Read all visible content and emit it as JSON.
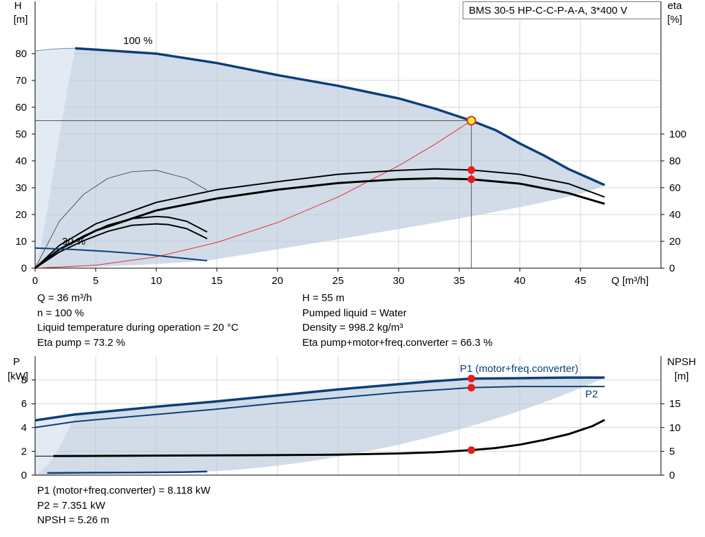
{
  "title": "BMS 30-5 HP-C-C-P-A-A, 3*400 V",
  "chart_data": [
    {
      "id": "head",
      "type": "line",
      "xlabel": "Q [m³/h]",
      "ylabel_left": [
        "H",
        "[m]"
      ],
      "ylabel_right": [
        "eta",
        "[%]"
      ],
      "xlim": [
        0,
        50
      ],
      "ylim": [
        0,
        90
      ],
      "y2lim": [
        0,
        200
      ],
      "xticks": [
        0,
        5,
        10,
        15,
        20,
        25,
        30,
        35,
        40,
        45
      ],
      "yticks": [
        0,
        10,
        20,
        30,
        40,
        50,
        60,
        70,
        80
      ],
      "y2ticks": [
        0,
        20,
        40,
        60,
        80,
        100
      ],
      "annotations": [
        "100 %",
        "30 %"
      ],
      "duty_point": {
        "q": 36,
        "h": 55
      },
      "series": [
        {
          "key": "h100",
          "color": "#0b3e7a",
          "x": [
            3.3,
            10,
            15,
            20,
            25,
            30,
            33,
            36,
            38,
            40,
            42,
            44,
            45.5,
            47
          ],
          "y": [
            82,
            80,
            76.5,
            72,
            68,
            63.3,
            59.5,
            55,
            51.5,
            46.5,
            42,
            37,
            34,
            31
          ]
        },
        {
          "key": "h_low",
          "color": "#0b3e7a",
          "x": [
            0,
            3,
            6,
            9,
            12,
            14.2
          ],
          "y": [
            7.5,
            7,
            6.2,
            5.2,
            3.8,
            2.8
          ]
        },
        {
          "key": "sys",
          "color": "#e82a2a",
          "x": [
            0,
            5,
            10,
            15,
            20,
            25,
            30,
            33,
            36
          ],
          "y": [
            0,
            1.1,
            4.2,
            9.6,
            17,
            26.5,
            38.2,
            46.2,
            55
          ]
        },
        {
          "key": "eta_pump",
          "color": "#000000",
          "x": [
            0,
            2,
            5,
            10,
            15,
            20,
            25,
            30,
            33,
            36,
            40,
            44,
            47
          ],
          "y": [
            0,
            17,
            33,
            49,
            58.5,
            64.5,
            70,
            73,
            74,
            73.2,
            70,
            63,
            53
          ]
        },
        {
          "key": "eta_total",
          "color": "#000000",
          "x": [
            0,
            2,
            5,
            10,
            15,
            20,
            25,
            30,
            33,
            36,
            40,
            44,
            47
          ],
          "y": [
            0,
            14,
            28,
            43,
            52,
            58.5,
            63.5,
            66.3,
            67,
            66.3,
            63,
            56,
            48
          ]
        },
        {
          "key": "eta_low_a",
          "color": "#000000",
          "x": [
            0,
            2,
            4,
            6,
            8,
            10,
            11,
            12.5,
            14.2
          ],
          "y": [
            0,
            14,
            24,
            32,
            37,
            38.5,
            38,
            35,
            27
          ]
        },
        {
          "key": "eta_low_b",
          "color": "#000000",
          "x": [
            0,
            2,
            4,
            6,
            8,
            10,
            11,
            12.5,
            14.2
          ],
          "y": [
            0,
            12,
            20.5,
            27.5,
            32,
            33,
            32.5,
            29.5,
            22
          ]
        },
        {
          "key": "npsh_thin",
          "color": "#222222",
          "x": [
            0,
            2,
            4,
            6,
            8,
            10,
            12.5,
            14.2
          ],
          "y": [
            0,
            35,
            55,
            67,
            72,
            73,
            67,
            58
          ]
        }
      ],
      "markers": [
        {
          "x": 36,
          "y": 55,
          "axis": "left",
          "kind": "duty"
        },
        {
          "x": 36,
          "y": 73.2,
          "axis": "right",
          "kind": "point"
        },
        {
          "x": 36,
          "y": 66.3,
          "axis": "right",
          "kind": "point"
        }
      ]
    },
    {
      "id": "power",
      "type": "line",
      "xlim": [
        0,
        50
      ],
      "ylim": [
        0,
        10
      ],
      "y2lim": [
        0,
        25
      ],
      "ylabel_left": [
        "P",
        "[kW]"
      ],
      "ylabel_right": [
        "NPSH",
        "[m]"
      ],
      "yticks": [
        0,
        2,
        4,
        6,
        8
      ],
      "y2ticks": [
        0,
        5,
        10,
        15
      ],
      "series": [
        {
          "key": "p1",
          "name": "P1 (motor+freq.converter)",
          "color": "#0b3e7a",
          "x": [
            0,
            3.3,
            10,
            15,
            20,
            25,
            30,
            33,
            36,
            40,
            44,
            47
          ],
          "y": [
            4.6,
            5.1,
            5.75,
            6.2,
            6.7,
            7.2,
            7.65,
            7.9,
            8.118,
            8.15,
            8.2,
            8.2
          ]
        },
        {
          "key": "p2",
          "name": "P2",
          "color": "#0b3e7a",
          "x": [
            0,
            3.3,
            10,
            15,
            20,
            25,
            30,
            33,
            36,
            40,
            44,
            47
          ],
          "y": [
            4.0,
            4.5,
            5.1,
            5.55,
            6.05,
            6.5,
            6.95,
            7.15,
            7.351,
            7.45,
            7.45,
            7.45
          ]
        },
        {
          "key": "p_low",
          "color": "#0b3e7a",
          "x": [
            1,
            4,
            8,
            12,
            14.2
          ],
          "y": [
            0.18,
            0.2,
            0.22,
            0.25,
            0.3
          ]
        },
        {
          "key": "npsh",
          "color": "#000000",
          "x": [
            1.5,
            10,
            20,
            25,
            30,
            33,
            36,
            38,
            40,
            42,
            44,
            46,
            47
          ],
          "y": [
            4.0,
            4.1,
            4.2,
            4.3,
            4.55,
            4.8,
            5.26,
            5.7,
            6.4,
            7.4,
            8.6,
            10.3,
            11.6
          ]
        }
      ],
      "markers": [
        {
          "x": 36,
          "y": 8.118,
          "axis": "left"
        },
        {
          "x": 36,
          "y": 7.351,
          "axis": "left"
        },
        {
          "x": 36,
          "y": 5.26,
          "axis": "right"
        }
      ]
    }
  ],
  "info_top_left": [
    "Q = 36 m³/h",
    "n = 100 %",
    "Liquid temperature during operation = 20 °C",
    "Eta pump = 73.2 %"
  ],
  "info_top_right": [
    "H = 55 m",
    "Pumped liquid = Water",
    "Density = 998.2 kg/m³",
    "Eta pump+motor+freq.converter = 66.3 %"
  ],
  "info_bottom": [
    "P1 (motor+freq.converter) = 8.118 kW",
    "P2 = 7.351 kW",
    "NPSH = 5.26 m"
  ]
}
